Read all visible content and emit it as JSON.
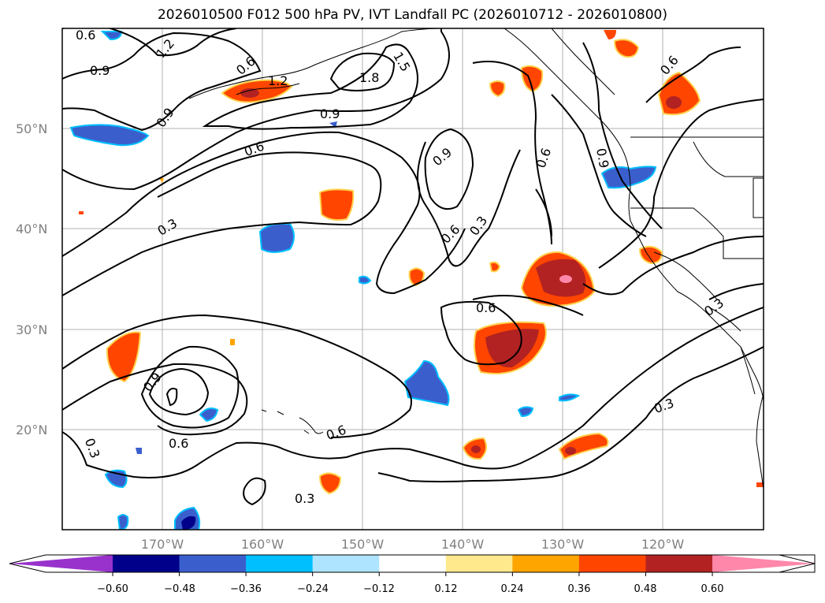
{
  "title": "2026010500 F012 500 hPa PV, IVT Landfall PC (2026010712 - 2026010800)",
  "map": {
    "projection": "PlateCarree",
    "lon_range": [
      -180,
      -110
    ],
    "lat_range": [
      10,
      60
    ],
    "grid": true,
    "lat_ticks": [
      "20°N",
      "30°N",
      "40°N",
      "50°N"
    ],
    "lon_ticks": [
      "170°W",
      "160°W",
      "150°W",
      "140°W",
      "130°W",
      "120°W"
    ]
  },
  "contours": {
    "color": "#000000",
    "labels": [
      "0.6",
      "1.2",
      "0.9",
      "1.2",
      "0.9",
      "0.6",
      "1.5",
      "1.8",
      "0.9",
      "0.6",
      "0.9",
      "0.6",
      "0.6",
      "0.3",
      "0.3",
      "0.9",
      "0.6",
      "0.6",
      "0.3",
      "0.3",
      "0.9",
      "0.6",
      "0.3",
      "0.3",
      "0.6"
    ]
  },
  "colorbar": {
    "extend": "both",
    "tick_labels": [
      "−0.60",
      "−0.48",
      "−0.36",
      "−0.24",
      "−0.12",
      "0.12",
      "0.24",
      "0.36",
      "0.48",
      "0.60"
    ],
    "colors": [
      "#9932cc",
      "#00008b",
      "#3a5fcd",
      "#00bfff",
      "#aee4ff",
      "#ffffff",
      "#ffe98c",
      "#ffa500",
      "#ff4500",
      "#b22222",
      "#ff88aa"
    ]
  }
}
